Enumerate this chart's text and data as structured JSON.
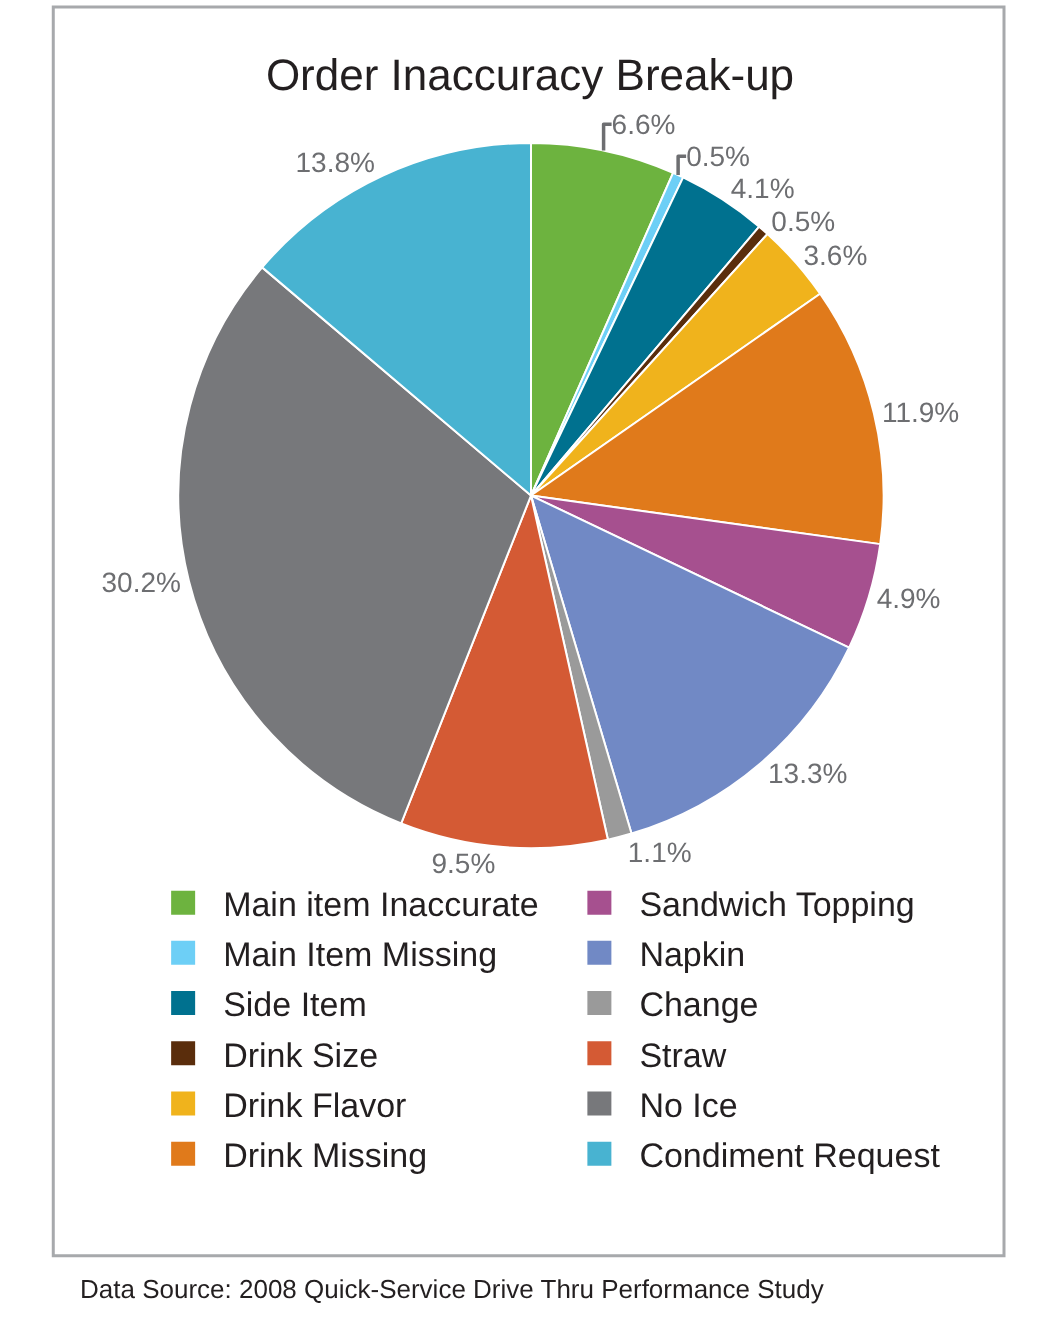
{
  "chart_data": {
    "type": "pie",
    "title": "Order Inaccuracy Break-up",
    "categories": [
      "Main item Inaccurate",
      "Main Item Missing",
      "Side Item",
      "Drink Size",
      "Drink Flavor",
      "Drink Missing",
      "Sandwich Topping",
      "Napkin",
      "Change",
      "Straw",
      "No Ice",
      "Condiment Request"
    ],
    "values": [
      6.6,
      0.5,
      4.1,
      0.5,
      3.6,
      11.9,
      4.9,
      13.3,
      1.1,
      9.5,
      30.2,
      13.8
    ],
    "value_labels": [
      "6.6%",
      "0.5%",
      "4.1%",
      "0.5%",
      "3.6%",
      "11.9%",
      "4.9%",
      "13.3%",
      "1.1%",
      "9.5%",
      "30.2%",
      "13.8%"
    ],
    "colors": [
      "#6db33f",
      "#6dcff6",
      "#00718f",
      "#5a2d0c",
      "#f0b31c",
      "#e07a1b",
      "#a6508f",
      "#7189c5",
      "#9a9a9a",
      "#d45a34",
      "#77787b",
      "#48b3d1"
    ],
    "legend": "bottom",
    "annotations": [
      "Data Source: 2008 Quick-Service Drive Thru Performance Study"
    ]
  }
}
